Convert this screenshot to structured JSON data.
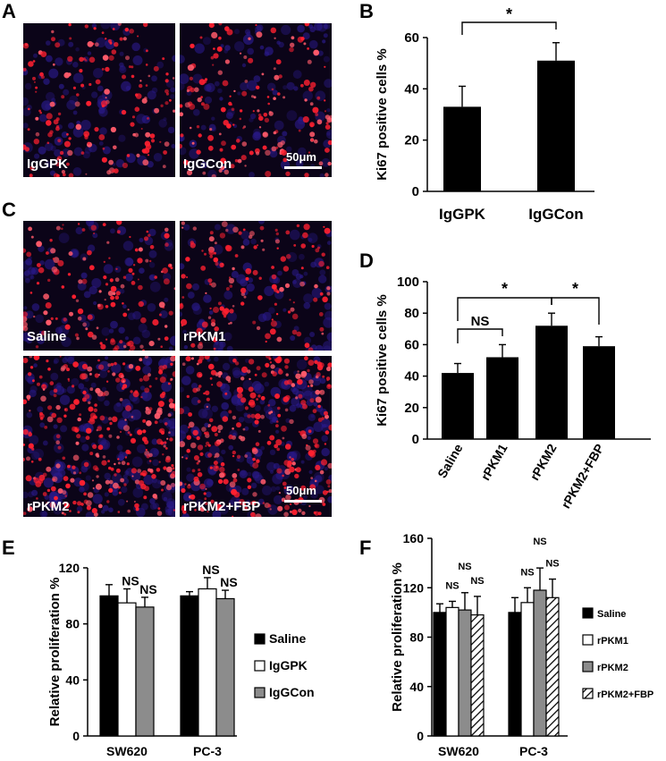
{
  "panels": {
    "A": {
      "letter": "A",
      "images": [
        {
          "label": "IgGPK"
        },
        {
          "label": "IgGCon"
        }
      ],
      "scale": "50μm"
    },
    "B": {
      "letter": "B",
      "chart_data": {
        "type": "bar",
        "categories": [
          "IgGPK",
          "IgGCon"
        ],
        "values": [
          33,
          51
        ],
        "errors": [
          8,
          7
        ],
        "ylabel": "Ki67 positive cells %",
        "ylim": [
          0,
          60
        ],
        "yticks": [
          0,
          20,
          40,
          60
        ],
        "annotations": [
          {
            "from": 0,
            "to": 1,
            "text": "*"
          }
        ]
      }
    },
    "C": {
      "letter": "C",
      "images": [
        {
          "label": "Saline"
        },
        {
          "label": "rPKM1"
        },
        {
          "label": "rPKM2"
        },
        {
          "label": "rPKM2+FBP"
        }
      ],
      "scale": "50μm"
    },
    "D": {
      "letter": "D",
      "chart_data": {
        "type": "bar",
        "categories": [
          "Saline",
          "rPKM1",
          "rPKM2",
          "rPKM2+FBP"
        ],
        "values": [
          42,
          52,
          72,
          59
        ],
        "errors": [
          6,
          8,
          8,
          6
        ],
        "ylabel": "Ki67 positive cells %",
        "ylim": [
          0,
          100
        ],
        "yticks": [
          0,
          20,
          40,
          60,
          80,
          100
        ],
        "annotations": [
          {
            "from": 0,
            "to": 1,
            "text": "NS"
          },
          {
            "from": 0,
            "to": 2,
            "text": "*"
          },
          {
            "from": 2,
            "to": 3,
            "text": "*"
          }
        ]
      }
    },
    "E": {
      "letter": "E",
      "chart_data": {
        "type": "bar",
        "categories": [
          "SW620",
          "PC-3"
        ],
        "series": [
          {
            "name": "Saline",
            "values": [
              100,
              100
            ],
            "errors": [
              8,
              3
            ],
            "fill": "solid-black"
          },
          {
            "name": "IgGPK",
            "values": [
              95,
              105
            ],
            "errors": [
              10,
              8
            ],
            "fill": "white"
          },
          {
            "name": "IgGCon",
            "values": [
              92,
              98
            ],
            "errors": [
              7,
              6
            ],
            "fill": "gray"
          }
        ],
        "ylabel": "Relative proliferation %",
        "ylim": [
          0,
          120
        ],
        "yticks": [
          0,
          40,
          80,
          120
        ],
        "annotations": [
          {
            "category": 0,
            "series": 1,
            "text": "NS"
          },
          {
            "category": 0,
            "series": 2,
            "text": "NS"
          },
          {
            "category": 1,
            "series": 1,
            "text": "NS"
          },
          {
            "category": 1,
            "series": 2,
            "text": "NS"
          }
        ]
      }
    },
    "F": {
      "letter": "F",
      "chart_data": {
        "type": "bar",
        "categories": [
          "SW620",
          "PC-3"
        ],
        "series": [
          {
            "name": "Saline",
            "values": [
              100,
              100
            ],
            "errors": [
              7,
              12
            ],
            "fill": "solid-black"
          },
          {
            "name": "rPKM1",
            "values": [
              104,
              108
            ],
            "errors": [
              5,
              12
            ],
            "fill": "white"
          },
          {
            "name": "rPKM2",
            "values": [
              102,
              118
            ],
            "errors": [
              14,
              18
            ],
            "fill": "gray"
          },
          {
            "name": "rPKM2+FBP",
            "values": [
              98,
              112
            ],
            "errors": [
              15,
              15
            ],
            "fill": "hatched"
          }
        ],
        "ylabel": "Relative proliferation %",
        "ylim": [
          0,
          160
        ],
        "yticks": [
          0,
          40,
          80,
          120,
          160
        ],
        "annotations": [
          {
            "category": 0,
            "series": 1,
            "text": "NS"
          },
          {
            "category": 0,
            "series": 2,
            "text": "NS"
          },
          {
            "category": 0,
            "series": 3,
            "text": "NS"
          },
          {
            "category": 1,
            "series": 1,
            "text": "NS"
          },
          {
            "category": 1,
            "series": 2,
            "text": "NS"
          },
          {
            "category": 1,
            "series": 3,
            "text": "NS"
          }
        ]
      }
    }
  }
}
